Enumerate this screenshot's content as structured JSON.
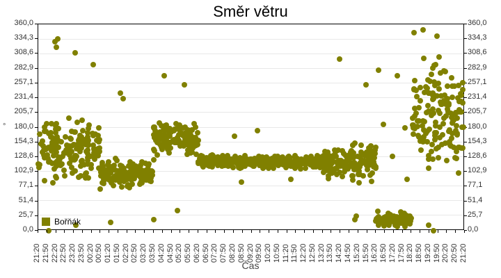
{
  "title": "Směr větru",
  "xlabel": "Čas",
  "ylabel": "°",
  "legend": {
    "label": "Bořňák",
    "color": "#808000"
  },
  "y_ticks": [
    "0,0",
    "25,7",
    "51,4",
    "77,1",
    "102,9",
    "128,6",
    "154,3",
    "180,0",
    "205,7",
    "231,4",
    "257,1",
    "282,9",
    "308,6",
    "334,3",
    "360,0"
  ],
  "x_ticks": [
    "21:20",
    "21:50",
    "22:20",
    "22:50",
    "23:20",
    "23:50",
    "00:20",
    "00:50",
    "01:20",
    "01:50",
    "02:20",
    "02:50",
    "03:20",
    "03:50",
    "04:20",
    "04:50",
    "05:20",
    "05:50",
    "06:20",
    "06:50",
    "07:20",
    "07:50",
    "08:20",
    "08:50",
    "09:20",
    "09:50",
    "10:20",
    "10:50",
    "11:20",
    "11:50",
    "12:20",
    "12:50",
    "13:20",
    "13:50",
    "14:20",
    "14:50",
    "15:20",
    "15:50",
    "16:20",
    "16:50",
    "17:20",
    "17:50",
    "18:20",
    "18:50",
    "19:20",
    "19:50",
    "20:20",
    "20:50",
    "21:20"
  ],
  "chart_data": {
    "type": "scatter",
    "title": "Směr větru",
    "xlabel": "Čas",
    "ylabel": "°",
    "ylim": [
      0,
      360
    ],
    "grid": true,
    "legend_position": "bottom-left inside",
    "x_range": [
      "21:20",
      "21:20 (+1 day)"
    ],
    "series": [
      {
        "name": "Bořňák",
        "color": "#808000",
        "clusters": [
          {
            "x_from": "21:20",
            "x_to": "00:50",
            "y_center": 140,
            "y_spread": 70,
            "outliers": [
              335,
              330,
              320,
              310,
              290,
              0,
              10
            ]
          },
          {
            "x_from": "00:50",
            "x_to": "03:50",
            "y_center": 100,
            "y_spread": 30,
            "outliers": [
              240,
              230,
              15,
              20
            ]
          },
          {
            "x_from": "03:50",
            "x_to": "06:20",
            "y_center": 160,
            "y_spread": 40,
            "outliers": [
              270,
              255,
              35
            ]
          },
          {
            "x_from": "06:20",
            "x_to": "13:20",
            "y_center": 120,
            "y_spread": 15,
            "outliers": [
              175,
              165,
              90,
              85
            ]
          },
          {
            "x_from": "13:20",
            "x_to": "16:20",
            "y_center": 120,
            "y_spread": 40,
            "outliers": [
              300,
              255,
              20,
              25
            ]
          },
          {
            "x_from": "16:20",
            "x_to": "18:20",
            "y_center": 20,
            "y_spread": 15,
            "outliers": [
              280,
              270,
              185,
              180,
              130,
              90
            ]
          },
          {
            "x_from": "18:20",
            "x_to": "21:20",
            "y_center": 200,
            "y_spread": 140,
            "outliers": [
              350,
              345,
              340,
              0,
              10
            ]
          }
        ]
      }
    ]
  }
}
